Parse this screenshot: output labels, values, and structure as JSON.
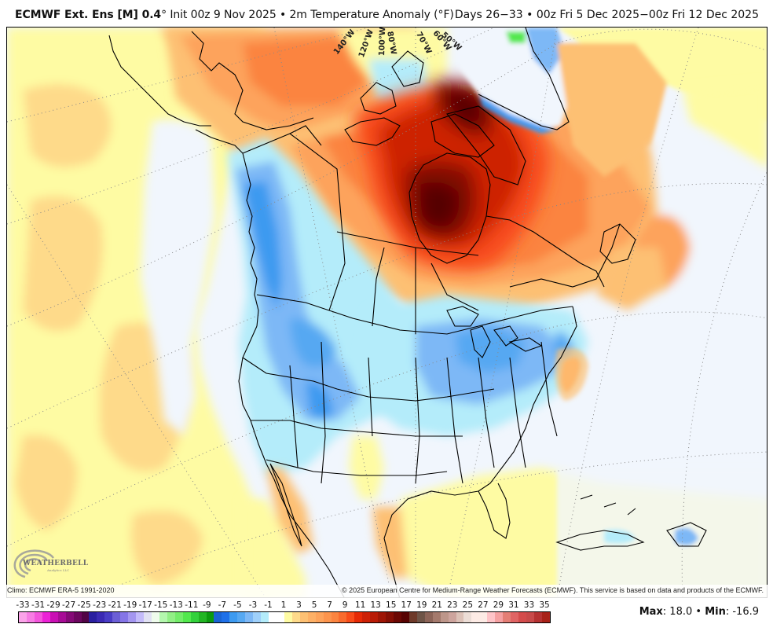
{
  "header": {
    "model_bold": "ECMWF Ext. Ens [M] 0.4",
    "model_degree": "°",
    "init_text": " Init 00z 9 Nov 2025 • 2m Temperature Anomaly (°F)",
    "valid_text": "Days 26−33 • 00z Fri 5 Dec 2025−00z Fri 12 Dec 2025"
  },
  "map": {
    "projection": "polar stereographic North America",
    "longitude_labels": [
      "140°W",
      "120°W",
      "100°W",
      "80°W",
      "70°W",
      "60°W",
      "50°W"
    ],
    "regions": {
      "hudson_bay_anomaly": "strong warm (+15 to +18°F)",
      "baffin_island": "warm (+9 to +15°F)",
      "greenland_interior": "near normal / slightly cool",
      "pacific_northwest_bc": "cool (-3 to -7°F)",
      "rockies_great_basin": "cool (-1 to -5°F)",
      "midwest_great_lakes_northeast": "cool (-3 to -5°F)",
      "southeast_us": "near normal",
      "texas_gulf_coast": "slightly warm (+1 to +3°F)",
      "baja_california": "slightly warm (+1 to +5°F)",
      "north_pacific": "slightly warm (+1 to +3°F)",
      "alaska_north": "warm (+3 to +7°F)",
      "north_atlantic": "slightly warm (+1 to +5°F)"
    }
  },
  "footer": {
    "climo": "Climo: ECMWF ERA-5 1991-2020",
    "copyright": "© 2025 European Centre for Medium-Range Weather Forecasts (ECMWF). This service is based on data and products of the ECMWF."
  },
  "logo": {
    "text": "WEATHERBELL",
    "sub": "Analytics LLC"
  },
  "colorbar": {
    "labels": [
      "-33",
      "-31",
      "-29",
      "-27",
      "-25",
      "-23",
      "-21",
      "-19",
      "-17",
      "-15",
      "-13",
      "-11",
      "-9",
      "-7",
      "-5",
      "-3",
      "-1",
      "1",
      "3",
      "5",
      "7",
      "9",
      "11",
      "13",
      "15",
      "17",
      "19",
      "21",
      "23",
      "25",
      "27",
      "29",
      "31",
      "33",
      "35"
    ],
    "colors": [
      "#fba3e9",
      "#f77de4",
      "#f356dc",
      "#ec22d6",
      "#c910b4",
      "#a70c96",
      "#850a77",
      "#6c075f",
      "#520546",
      "#2a1fa0",
      "#3b2ab4",
      "#4a3dc6",
      "#6c5fd6",
      "#8575e6",
      "#a496f0",
      "#c4bbfa",
      "#e1e1f3",
      "#effcec",
      "#b4f7ae",
      "#92ef86",
      "#74ec6a",
      "#52e84d",
      "#33d13c",
      "#22b524",
      "#0c9a0f",
      "#1a64d4",
      "#1f70e8",
      "#3d9af0",
      "#56a8f2",
      "#7db8f6",
      "#9fd0fa",
      "#b4ecfa",
      "#ffffff",
      "#ffffff",
      "#fefba3",
      "#feda8a",
      "#fdc073",
      "#fdb066",
      "#fda35b",
      "#fc944d",
      "#fb8440",
      "#f96b2e",
      "#f84c1a",
      "#e62a06",
      "#cd2106",
      "#b91b06",
      "#9e1505",
      "#850f04",
      "#6b0803",
      "#570302",
      "#6e3a2a",
      "#6e5447",
      "#8c6458",
      "#a47a6d",
      "#bd968a",
      "#cda49d",
      "#dcc1b7",
      "#ecddd6",
      "#fdebe5",
      "#fdebe5",
      "#fec4c8",
      "#f5a1a2",
      "#e47e75",
      "#e06464",
      "#d44c4c",
      "#c84a4a",
      "#b53232",
      "#a82118"
    ],
    "units": "°F"
  },
  "stats": {
    "max_label": "Max",
    "max_value": ": 18.0 • ",
    "min_label": "Min",
    "min_value": ": -16.9"
  }
}
